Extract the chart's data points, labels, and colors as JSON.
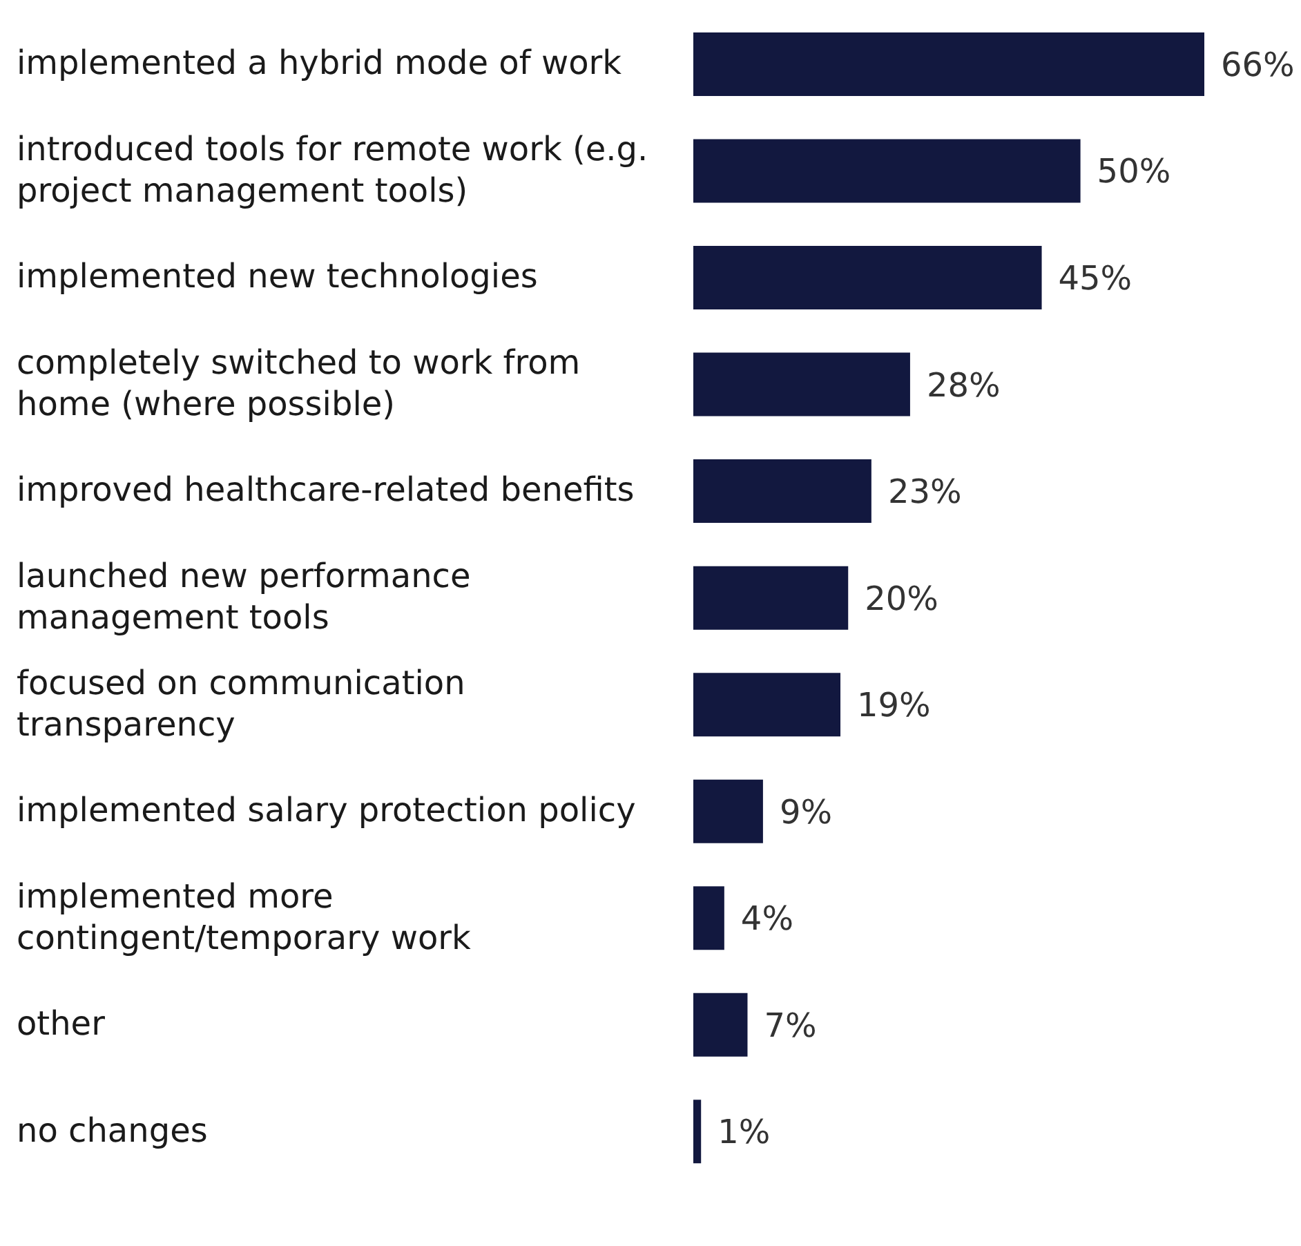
{
  "chart_data": {
    "type": "bar",
    "orientation": "horizontal",
    "categories": [
      "implemented a hybrid mode of work",
      "introduced tools for remote work (e.g. project management tools)",
      "implemented new technologies",
      "completely switched to work from home (where possible)",
      "improved healthcare-related benefits",
      "launched new performance management tools",
      "focused on communication transparency",
      "implemented salary protection policy",
      "implemented more contingent/temporary work",
      "other",
      "no changes"
    ],
    "values": [
      66,
      50,
      45,
      28,
      23,
      20,
      19,
      9,
      4,
      7,
      1
    ],
    "value_labels": [
      "66%",
      "50%",
      "45%",
      "28%",
      "23%",
      "20%",
      "19%",
      "9%",
      "4%",
      "7%",
      "1%"
    ],
    "color": "#12183f"
  }
}
